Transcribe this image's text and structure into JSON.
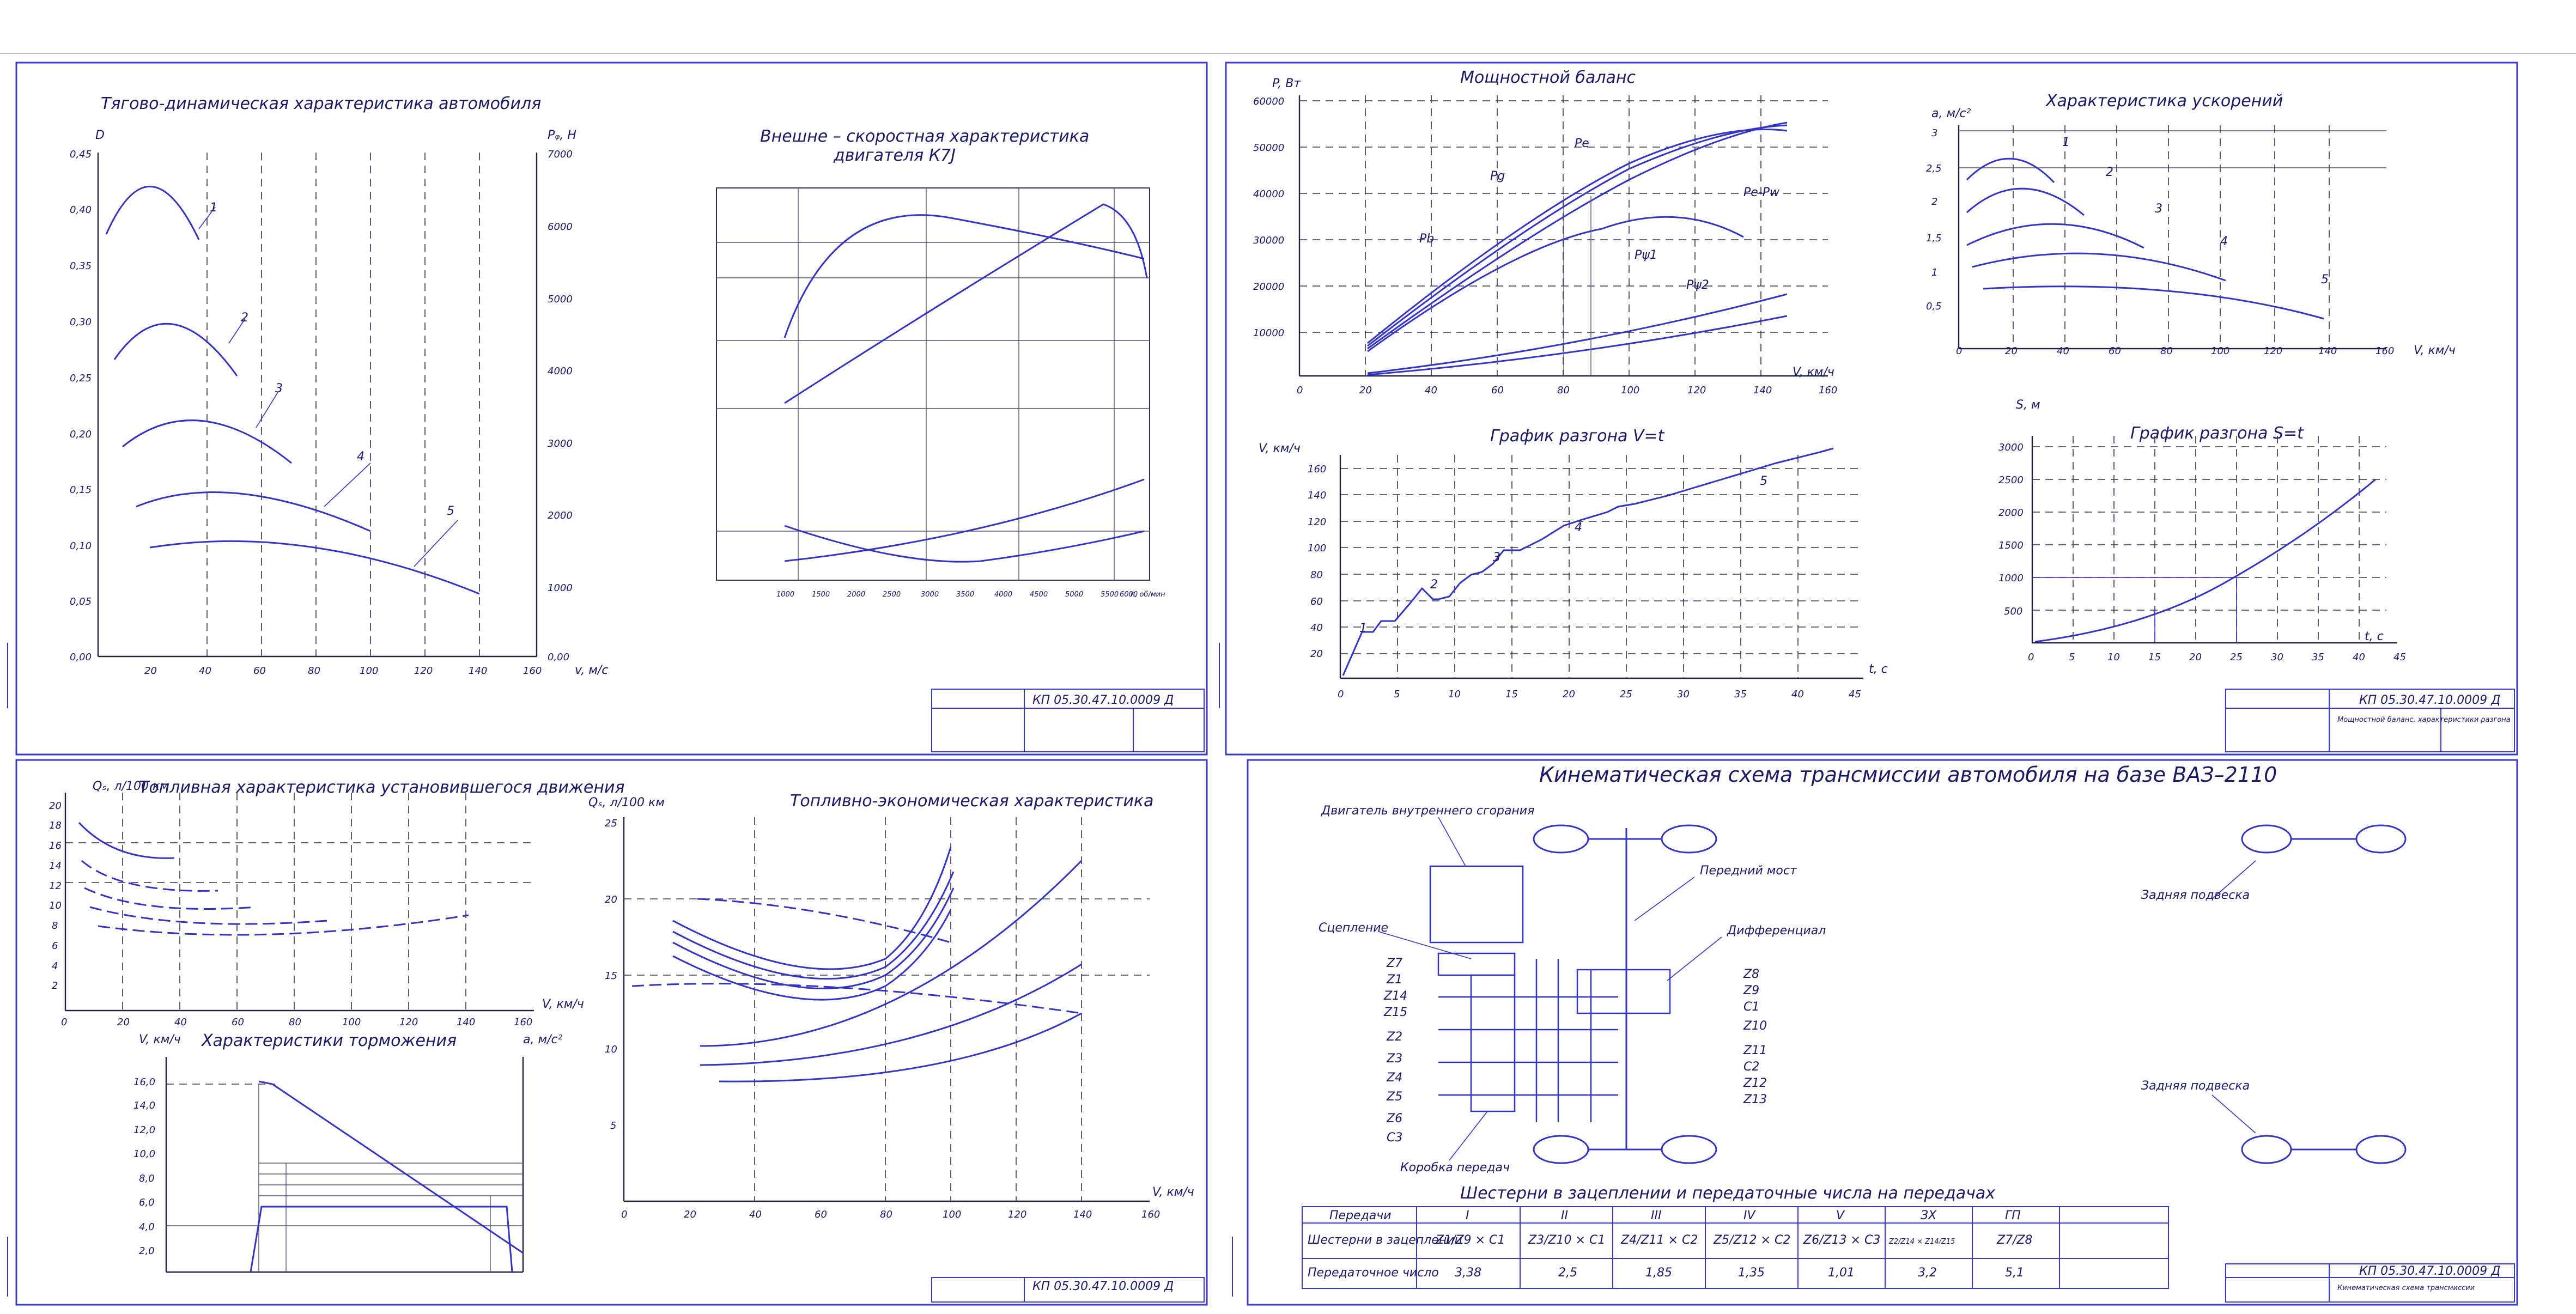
{
  "colors": {
    "line": "#3434c4",
    "frame": "#3a3ac8",
    "text": "#1a1a66"
  },
  "sheet1": {
    "traction": {
      "title": "Тягово-динамическая характеристика автомобиля",
      "ylabel": "D",
      "ylabel_right": "Pᵩ, H",
      "xlabel": "v, м/с",
      "xticks": [
        "20",
        "40",
        "60",
        "80",
        "100",
        "120",
        "140",
        "160"
      ],
      "yticks": [
        "0,00",
        "0,05",
        "0,10",
        "0,15",
        "0,20",
        "0,25",
        "0,30",
        "0,35",
        "0,40",
        "0,45"
      ],
      "yticks_right": [
        "0,00",
        "1000",
        "2000",
        "3000",
        "4000",
        "5000",
        "6000",
        "7000"
      ],
      "curve_labels": [
        "1",
        "2",
        "3",
        "4",
        "5"
      ]
    },
    "engine": {
      "title_line1": "Внешне – скоростная характеристика",
      "title_line2": "двигателя К7J",
      "xticks": [
        "1000",
        "1500",
        "2000",
        "2500",
        "3000",
        "3500",
        "4000",
        "4500",
        "5000",
        "5500",
        "6000"
      ],
      "xlabel": "n, об/мин"
    },
    "stamp_code": "КП 05.30.47.10.0009 Д"
  },
  "sheet2": {
    "power": {
      "title": "Мощностной баланс",
      "ylabel": "P, Вт",
      "xlabel": "V, км/ч",
      "yticks": [
        "10000",
        "20000",
        "30000",
        "40000",
        "50000",
        "60000"
      ],
      "xticks": [
        "0",
        "20",
        "40",
        "60",
        "80",
        "100",
        "120",
        "140",
        "160"
      ],
      "labels": [
        "Pe",
        "Pg",
        "Pb",
        "Pe-Pw",
        "Pψ1",
        "Pψ2"
      ]
    },
    "accel": {
      "title": "Характеристика ускорений",
      "ylabel": "a, м/с²",
      "xlabel": "V, км/ч",
      "yticks": [
        "0,5",
        "1",
        "1,5",
        "2",
        "2,5",
        "3"
      ],
      "xticks": [
        "0",
        "20",
        "40",
        "60",
        "80",
        "100",
        "120",
        "140",
        "160"
      ],
      "curve_labels": [
        "1",
        "2",
        "3",
        "4",
        "5"
      ]
    },
    "speedup_v": {
      "title": "График разгона V=t",
      "ylabel": "V, км/ч",
      "xlabel": "t, c",
      "yticks": [
        "20",
        "40",
        "60",
        "80",
        "100",
        "120",
        "140",
        "160"
      ],
      "xticks": [
        "0",
        "5",
        "10",
        "15",
        "20",
        "25",
        "30",
        "35",
        "40",
        "45"
      ],
      "curve_labels": [
        "1",
        "2",
        "3",
        "4",
        "5"
      ]
    },
    "speedup_s": {
      "title": "График разгона S=t",
      "ylabel": "S, м",
      "xlabel": "t, c",
      "yticks": [
        "500",
        "1000",
        "1500",
        "2000",
        "2500",
        "3000"
      ],
      "xticks": [
        "0",
        "5",
        "10",
        "15",
        "20",
        "25",
        "30",
        "35",
        "40",
        "45"
      ]
    },
    "stamp_code": "КП 05.30.47.10.0009 Д",
    "stamp_desc": "Мощностной баланс, характеристики разгона"
  },
  "sheet3": {
    "fuel_steady": {
      "title": "Топливная характеристика установившегося движения",
      "ylabel": "Qₛ, л/100 км",
      "xlabel": "V, км/ч",
      "yticks": [
        "2",
        "4",
        "6",
        "8",
        "10",
        "12",
        "14",
        "16",
        "18",
        "20"
      ],
      "xticks": [
        "0",
        "20",
        "40",
        "60",
        "80",
        "100",
        "120",
        "140",
        "160"
      ]
    },
    "braking": {
      "title": "Характеристики торможения",
      "ylabel": "V, км/ч",
      "ylabel_right": "a, м/с²",
      "yticks": [
        "2,0",
        "4,0",
        "6,0",
        "8,0",
        "10,0",
        "12,0",
        "14,0",
        "16,0"
      ]
    },
    "fuel_econ": {
      "title": "Топливно-экономическая характеристика",
      "ylabel": "Qₛ, л/100 км",
      "xlabel": "V, км/ч",
      "yticks": [
        "5",
        "10",
        "15",
        "20",
        "25"
      ],
      "xticks": [
        "0",
        "20",
        "40",
        "60",
        "80",
        "100",
        "120",
        "140",
        "160"
      ]
    },
    "stamp_code": "КП 05.30.47.10.0009 Д"
  },
  "sheet4": {
    "title": "Кинематическая схема трансмиссии автомобиля на базе ВАЗ–2110",
    "callouts": {
      "engine": "Двигатель внутреннего сгорания",
      "clutch": "Сцепление",
      "front_axle": "Передний мост",
      "diff": "Дифференциал",
      "rear_susp": "Задняя подвеска",
      "gearbox": "Коробка передач"
    },
    "gear_left": [
      "Z7",
      "Z1",
      "Z14",
      "Z15",
      "Z2",
      "Z3",
      "Z4",
      "Z5",
      "Z6",
      "C3"
    ],
    "gear_right": [
      "Z8",
      "Z9",
      "C1",
      "Z10",
      "Z11",
      "C2",
      "Z12",
      "Z13"
    ],
    "table_title": "Шестерни в зацеплении и передаточные числа на передачах",
    "table": {
      "row_headers": [
        "Передачи",
        "Шестерни в зацеплении",
        "Передаточное число"
      ],
      "cols": [
        {
          "gear": "I",
          "mesh": "Z1/Z9 × C1",
          "ratio": "3,38"
        },
        {
          "gear": "II",
          "mesh": "Z3/Z10 × C1",
          "ratio": "2,5"
        },
        {
          "gear": "III",
          "mesh": "Z4/Z11 × C2",
          "ratio": "1,85"
        },
        {
          "gear": "IV",
          "mesh": "Z5/Z12 × C2",
          "ratio": "1,35"
        },
        {
          "gear": "V",
          "mesh": "Z6/Z13 × C3",
          "ratio": "1,01"
        },
        {
          "gear": "ЗХ",
          "mesh": "Z2/Z14 × Z14/Z15",
          "ratio": "3,2"
        },
        {
          "gear": "ГП",
          "mesh": "Z7/Z8",
          "ratio": "5,1"
        }
      ]
    },
    "stamp_code": "КП 05.30.47.10.0009 Д",
    "stamp_desc": "Кинематическая схема трансмиссии"
  }
}
